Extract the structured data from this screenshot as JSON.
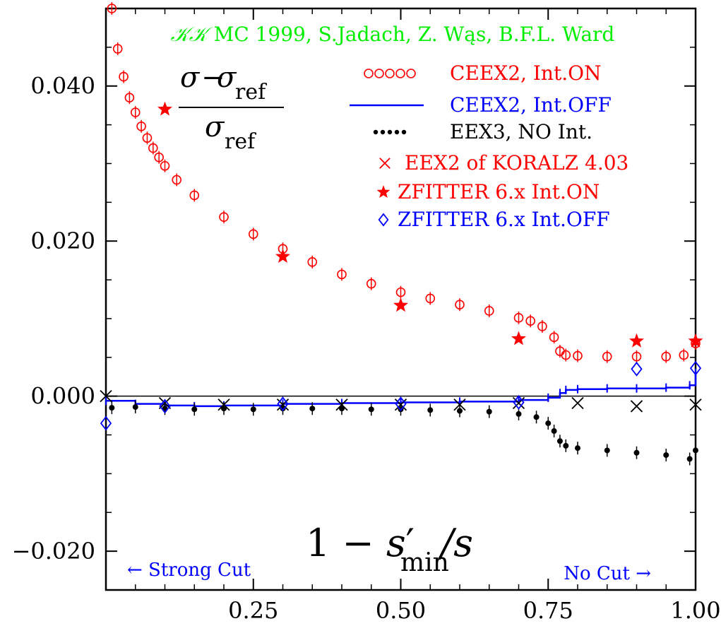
{
  "colors": {
    "red": "#ff0000",
    "blue": "#0000ff",
    "black": "#000000",
    "green": "#00ee00"
  },
  "chart_data": {
    "type": "scatter",
    "title": "",
    "credit": {
      "kk": "𝒦𝒦",
      "rest": " MC 1999, S.Jadach, Z. Wąs, B.F.L. Ward"
    },
    "formula": {
      "num_sigma": "σ",
      "num_sigma2": "σ",
      "minus": "−",
      "sub_ref": "ref",
      "den_sigma": "σ",
      "den_sub": "ref"
    },
    "xlabel": {
      "prefix": "1 − ",
      "s": "s",
      "prime": "′",
      "sub": "min",
      "tail": "/s"
    },
    "ylabel": "",
    "xlim": [
      0.0,
      1.0
    ],
    "ylim": [
      -0.025,
      0.05
    ],
    "x_ticks": [
      {
        "value": 0.25,
        "label": "0.25"
      },
      {
        "value": 0.5,
        "label": "0.50"
      },
      {
        "value": 0.75,
        "label": "0.75"
      },
      {
        "value": 1.0,
        "label": "1.00"
      }
    ],
    "y_ticks": [
      {
        "value": -0.02,
        "label": "−0.020"
      },
      {
        "value": 0.0,
        "label": "0.000"
      },
      {
        "value": 0.02,
        "label": "0.020"
      },
      {
        "value": 0.04,
        "label": "0.040"
      }
    ],
    "annotations": {
      "left": "← Strong Cut",
      "right": "No Cut →"
    },
    "legend_position": "top-right",
    "series": [
      {
        "name": "CEEX2, Int.ON",
        "marker": "open-circle",
        "color": "#ff0000",
        "points": [
          [
            0.01,
            0.05
          ],
          [
            0.02,
            0.0448
          ],
          [
            0.03,
            0.0412
          ],
          [
            0.04,
            0.0385
          ],
          [
            0.05,
            0.0366
          ],
          [
            0.06,
            0.0348
          ],
          [
            0.07,
            0.0333
          ],
          [
            0.08,
            0.032
          ],
          [
            0.09,
            0.0308
          ],
          [
            0.1,
            0.0297
          ],
          [
            0.12,
            0.0279
          ],
          [
            0.15,
            0.0259
          ],
          [
            0.2,
            0.0231
          ],
          [
            0.25,
            0.0209
          ],
          [
            0.3,
            0.019
          ],
          [
            0.35,
            0.0173
          ],
          [
            0.4,
            0.0157
          ],
          [
            0.45,
            0.0145
          ],
          [
            0.5,
            0.0134
          ],
          [
            0.55,
            0.0126
          ],
          [
            0.6,
            0.0118
          ],
          [
            0.65,
            0.011
          ],
          [
            0.7,
            0.0101
          ],
          [
            0.72,
            0.0097
          ],
          [
            0.74,
            0.009
          ],
          [
            0.76,
            0.0076
          ],
          [
            0.77,
            0.0058
          ],
          [
            0.78,
            0.0053
          ],
          [
            0.8,
            0.0052
          ],
          [
            0.85,
            0.0051
          ],
          [
            0.9,
            0.0051
          ],
          [
            0.95,
            0.0051
          ],
          [
            0.98,
            0.0053
          ],
          [
            1.0,
            0.0068
          ]
        ]
      },
      {
        "name": "CEEX2, Int.OFF",
        "marker": "line",
        "color": "#0000ff",
        "points": [
          [
            0.0,
            -0.0006
          ],
          [
            0.05,
            -0.001
          ],
          [
            0.1,
            -0.0012
          ],
          [
            0.15,
            -0.0013
          ],
          [
            0.2,
            -0.0012
          ],
          [
            0.3,
            -0.001
          ],
          [
            0.4,
            -0.0009
          ],
          [
            0.5,
            -0.0008
          ],
          [
            0.6,
            -0.0007
          ],
          [
            0.7,
            -0.0005
          ],
          [
            0.75,
            -0.0002
          ],
          [
            0.77,
            0.0004
          ],
          [
            0.78,
            0.0008
          ],
          [
            0.8,
            0.0009
          ],
          [
            0.85,
            0.001
          ],
          [
            0.9,
            0.001
          ],
          [
            0.95,
            0.0011
          ],
          [
            0.99,
            0.0014
          ],
          [
            1.0,
            0.003
          ]
        ]
      },
      {
        "name": "EEX3, NO Int.",
        "marker": "filled-dot",
        "color": "#000000",
        "points": [
          [
            0.01,
            -0.0015
          ],
          [
            0.05,
            -0.0014
          ],
          [
            0.1,
            -0.0016
          ],
          [
            0.15,
            -0.0017
          ],
          [
            0.2,
            -0.0016
          ],
          [
            0.25,
            -0.0017
          ],
          [
            0.3,
            -0.0016
          ],
          [
            0.35,
            -0.0016
          ],
          [
            0.4,
            -0.0016
          ],
          [
            0.45,
            -0.0017
          ],
          [
            0.5,
            -0.0017
          ],
          [
            0.55,
            -0.0018
          ],
          [
            0.6,
            -0.0019
          ],
          [
            0.65,
            -0.002
          ],
          [
            0.7,
            -0.0023
          ],
          [
            0.73,
            -0.0027
          ],
          [
            0.75,
            -0.0035
          ],
          [
            0.76,
            -0.0045
          ],
          [
            0.77,
            -0.0058
          ],
          [
            0.78,
            -0.0064
          ],
          [
            0.8,
            -0.0067
          ],
          [
            0.85,
            -0.007
          ],
          [
            0.9,
            -0.0073
          ],
          [
            0.95,
            -0.0076
          ],
          [
            0.99,
            -0.0081
          ],
          [
            1.0,
            -0.007
          ]
        ]
      },
      {
        "name": "EEX2 of KORALZ 4.03",
        "marker": "cross",
        "color": "#ff0000",
        "legend_color": "#ff0000",
        "plot_color": "#000000",
        "points": [
          [
            0.0,
            0.0
          ],
          [
            0.1,
            -0.0009
          ],
          [
            0.2,
            -0.0011
          ],
          [
            0.3,
            -0.0011
          ],
          [
            0.4,
            -0.0011
          ],
          [
            0.5,
            -0.0011
          ],
          [
            0.6,
            -0.0011
          ],
          [
            0.7,
            -0.0009
          ],
          [
            0.8,
            -0.0009
          ],
          [
            0.9,
            -0.0013
          ],
          [
            1.0,
            -0.0011
          ]
        ]
      },
      {
        "name": "ZFITTER 6.x Int.ON",
        "marker": "star",
        "color": "#ff0000",
        "points": [
          [
            0.1,
            0.037
          ],
          [
            0.3,
            0.018
          ],
          [
            0.5,
            0.0117
          ],
          [
            0.7,
            0.0074
          ],
          [
            0.9,
            0.0071
          ],
          [
            1.0,
            0.0071
          ]
        ]
      },
      {
        "name": "ZFITTER 6.x Int.OFF",
        "marker": "open-diamond",
        "color": "#0000ff",
        "points": [
          [
            0.0,
            -0.0035
          ],
          [
            0.1,
            -0.0013
          ],
          [
            0.3,
            -0.001
          ],
          [
            0.5,
            -0.001
          ],
          [
            0.7,
            -0.0008
          ],
          [
            0.9,
            0.0035
          ],
          [
            1.0,
            0.0036
          ]
        ]
      }
    ]
  }
}
